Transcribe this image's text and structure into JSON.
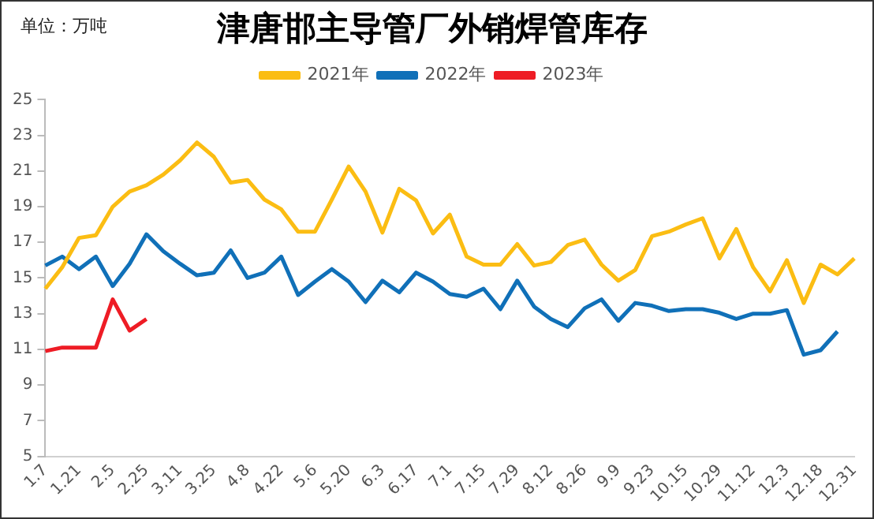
{
  "chart_data": {
    "type": "line",
    "title": "津唐邯主导管厂外销焊管库存",
    "annotations": [
      "单位：万吨"
    ],
    "categories": [
      "1.7",
      null,
      "1.21",
      null,
      "2.5",
      null,
      "2.25",
      null,
      "3.11",
      null,
      "3.25",
      null,
      "4.8",
      null,
      "4.22",
      null,
      "5.6",
      null,
      "5.20",
      null,
      "6.3",
      null,
      "6.17",
      null,
      "7.1",
      null,
      "7.15",
      null,
      "7.29",
      null,
      "8.12",
      null,
      "8.26",
      null,
      "9.9",
      null,
      "9.23",
      null,
      "10.15",
      null,
      "10.29",
      null,
      "11.12",
      null,
      "12.3",
      null,
      "12.18",
      null,
      "12.31"
    ],
    "series": [
      {
        "name": "2021年",
        "color": "#fbbd13",
        "values": [
          14.4,
          15.6,
          17.25,
          17.4,
          19.0,
          19.85,
          20.2,
          20.8,
          21.6,
          22.6,
          21.8,
          20.35,
          20.5,
          19.4,
          18.85,
          17.6,
          17.6,
          19.4,
          21.25,
          19.85,
          17.55,
          20.0,
          19.35,
          17.5,
          18.55,
          16.2,
          15.75,
          15.75,
          16.9,
          15.7,
          15.9,
          16.85,
          17.15,
          15.75,
          14.85,
          15.45,
          17.35,
          17.6,
          18.0,
          18.35,
          16.1,
          17.75,
          15.6,
          14.25,
          16.0,
          13.6,
          15.75,
          15.2,
          16.1
        ]
      },
      {
        "name": "2022年",
        "color": "#1070b8",
        "values": [
          15.7,
          16.2,
          15.5,
          16.2,
          14.55,
          15.8,
          17.45,
          16.5,
          15.8,
          15.15,
          15.3,
          16.55,
          15.0,
          15.3,
          16.2,
          14.05,
          14.8,
          15.5,
          14.8,
          13.65,
          14.85,
          14.2,
          15.3,
          14.8,
          14.1,
          13.95,
          14.4,
          13.25,
          14.85,
          13.4,
          12.7,
          12.25,
          13.3,
          13.8,
          12.6,
          13.6,
          13.45,
          13.15,
          13.25,
          13.25,
          13.05,
          12.7,
          13.0,
          13.0,
          13.2,
          10.7,
          10.95,
          12.0,
          null
        ]
      },
      {
        "name": "2023年",
        "color": "#ee1c25",
        "values": [
          10.9,
          11.1,
          11.1,
          11.1,
          13.8,
          12.05,
          12.7,
          null,
          null,
          null,
          null,
          null,
          null,
          null,
          null,
          null,
          null,
          null,
          null,
          null,
          null,
          null,
          null,
          null,
          null,
          null,
          null,
          null,
          null,
          null,
          null,
          null,
          null,
          null,
          null,
          null,
          null,
          null,
          null,
          null,
          null,
          null,
          null,
          null,
          null,
          null,
          null,
          null,
          null
        ]
      }
    ],
    "ylim": [
      5,
      25
    ],
    "yticks": [
      5,
      7,
      9,
      11,
      13,
      15,
      17,
      19,
      21,
      23,
      25
    ],
    "grid": false,
    "legend": "top",
    "marker": "none",
    "line_style": "solid"
  }
}
